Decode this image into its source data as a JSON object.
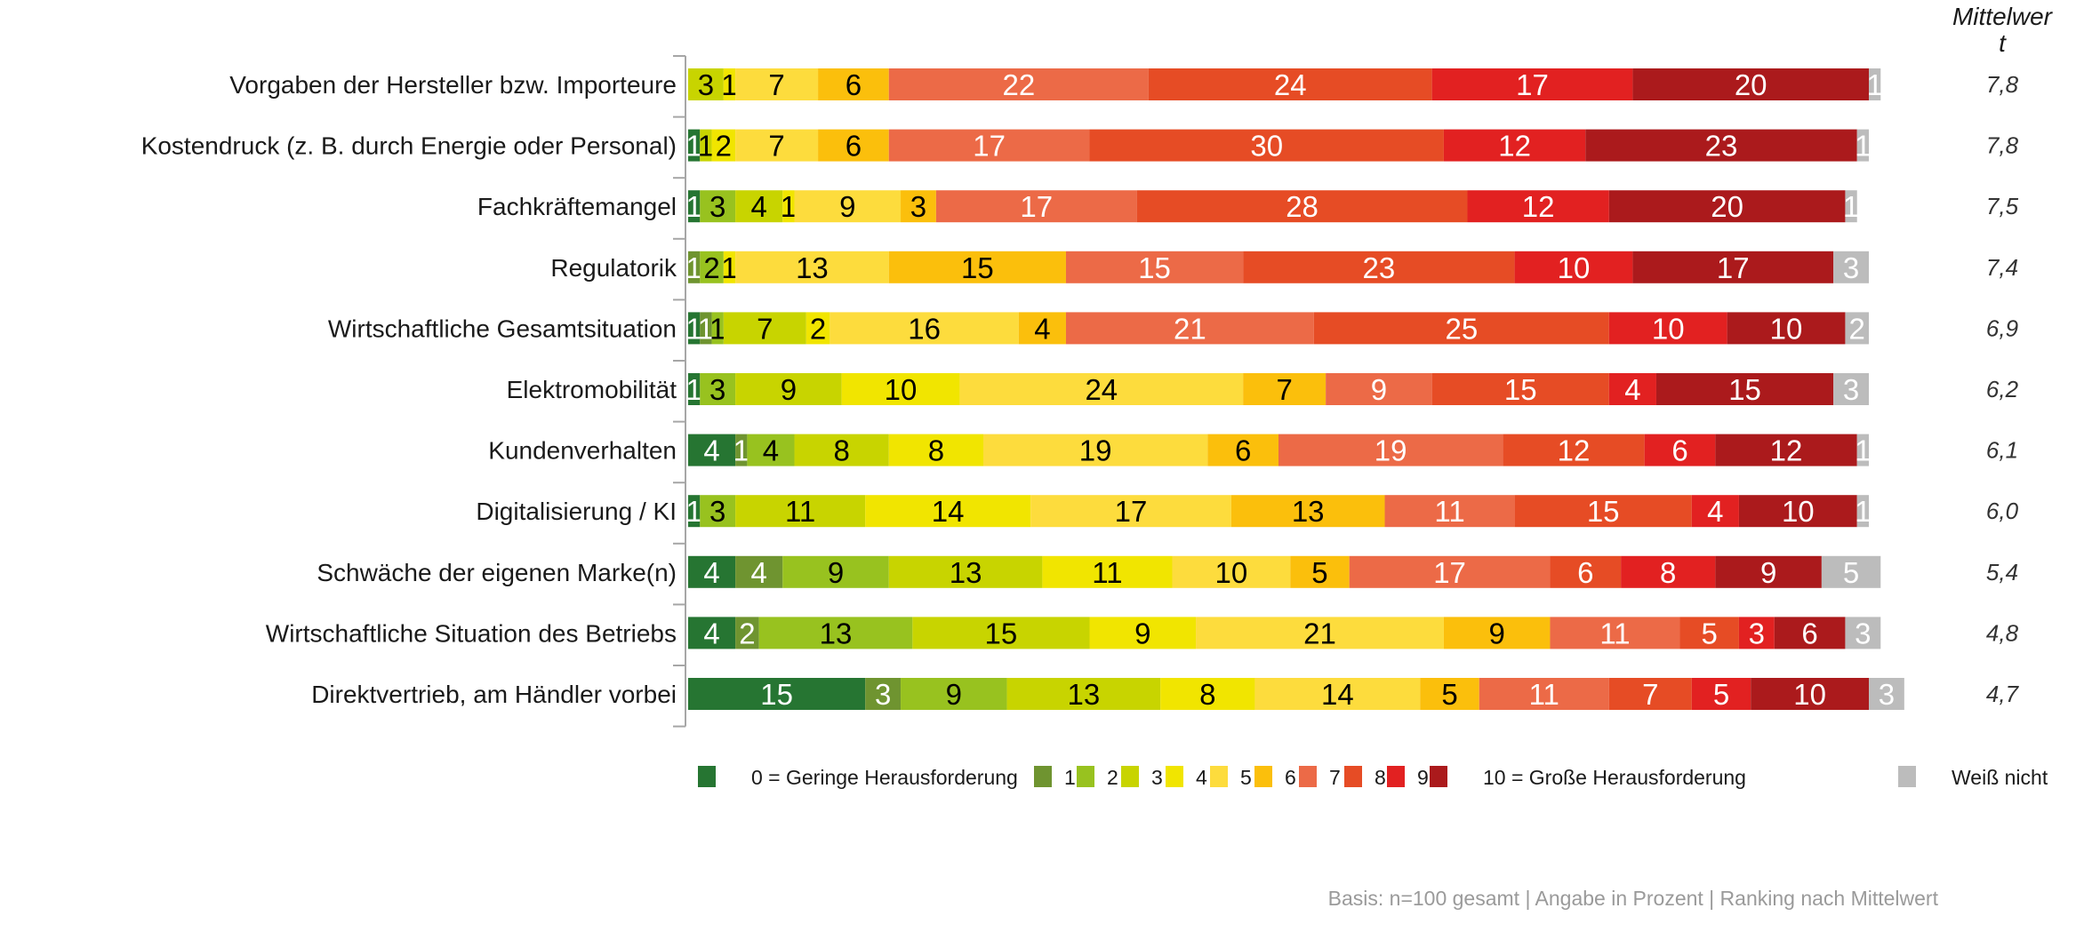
{
  "chart_data": {
    "type": "bar",
    "orientation": "horizontal",
    "stacked": true,
    "percent": true,
    "categories": [
      "Vorgaben der Hersteller bzw. Importeure",
      "Kostendruck (z. B. durch Energie oder Personal)",
      "Fachkräftemangel",
      "Regulatorik",
      "Wirtschaftliche Gesamtsituation",
      "Elektromobilität",
      "Kundenverhalten",
      "Digitalisierung / KI",
      "Schwäche der eigenen Marke(n)",
      "Wirtschaftliche Situation des Betriebs",
      "Direktvertrieb, am Händler vorbei"
    ],
    "series": [
      {
        "name": "0 = Geringe Herausforderung",
        "color": "#267532",
        "label_color": "#ffffff",
        "values": [
          0,
          1,
          1,
          0,
          1,
          1,
          4,
          1,
          4,
          4,
          15
        ]
      },
      {
        "name": "1",
        "color": "#6f9430",
        "label_color": "#ffffff",
        "values": [
          0,
          0,
          0,
          1,
          1,
          0,
          1,
          0,
          4,
          2,
          3
        ]
      },
      {
        "name": "2",
        "color": "#98c21f",
        "label_color": "#000000",
        "values": [
          0,
          0,
          3,
          2,
          1,
          3,
          4,
          3,
          9,
          13,
          9
        ]
      },
      {
        "name": "3",
        "color": "#c8d400",
        "label_color": "#000000",
        "values": [
          3,
          1,
          4,
          0,
          7,
          9,
          8,
          11,
          13,
          15,
          13
        ]
      },
      {
        "name": "4",
        "color": "#f1e500",
        "label_color": "#000000",
        "values": [
          1,
          2,
          1,
          1,
          2,
          10,
          8,
          14,
          11,
          9,
          8
        ]
      },
      {
        "name": "5",
        "color": "#fddc3d",
        "label_color": "#000000",
        "values": [
          7,
          7,
          9,
          13,
          16,
          24,
          19,
          17,
          10,
          21,
          14
        ]
      },
      {
        "name": "6",
        "color": "#fbbf0c",
        "label_color": "#000000",
        "values": [
          6,
          6,
          3,
          15,
          4,
          7,
          6,
          13,
          5,
          9,
          5
        ]
      },
      {
        "name": "7",
        "color": "#ec6a47",
        "label_color": "#ffffff",
        "values": [
          22,
          17,
          17,
          15,
          21,
          9,
          19,
          11,
          17,
          11,
          11
        ]
      },
      {
        "name": "8",
        "color": "#e64c25",
        "label_color": "#ffffff",
        "values": [
          24,
          30,
          28,
          23,
          25,
          15,
          12,
          15,
          6,
          5,
          7
        ]
      },
      {
        "name": "9",
        "color": "#e22121",
        "label_color": "#ffffff",
        "values": [
          17,
          12,
          12,
          10,
          10,
          4,
          6,
          4,
          8,
          3,
          5
        ]
      },
      {
        "name": "10 = Große Herausforderung",
        "color": "#ab1a1c",
        "label_color": "#ffffff",
        "values": [
          20,
          23,
          20,
          17,
          10,
          15,
          12,
          10,
          9,
          6,
          10
        ]
      },
      {
        "name": "Weiß nicht",
        "color": "#bcbcbc",
        "label_color": "#ffffff",
        "values": [
          1,
          1,
          1,
          3,
          2,
          3,
          1,
          1,
          5,
          3,
          3
        ]
      }
    ],
    "mean_header": "Mittelwer t",
    "mean_header_lines": [
      "Mittelwer",
      "t"
    ],
    "means": [
      "7,8",
      "7,8",
      "7,5",
      "7,4",
      "6,9",
      "6,2",
      "6,1",
      "6,0",
      "5,4",
      "4,8",
      "4,7"
    ],
    "xlim": [
      0,
      100
    ],
    "grid": false,
    "legend_position": "bottom",
    "footnote": "Basis: n=100 gesamt | Angabe in Prozent | Ranking nach Mittelwert"
  }
}
